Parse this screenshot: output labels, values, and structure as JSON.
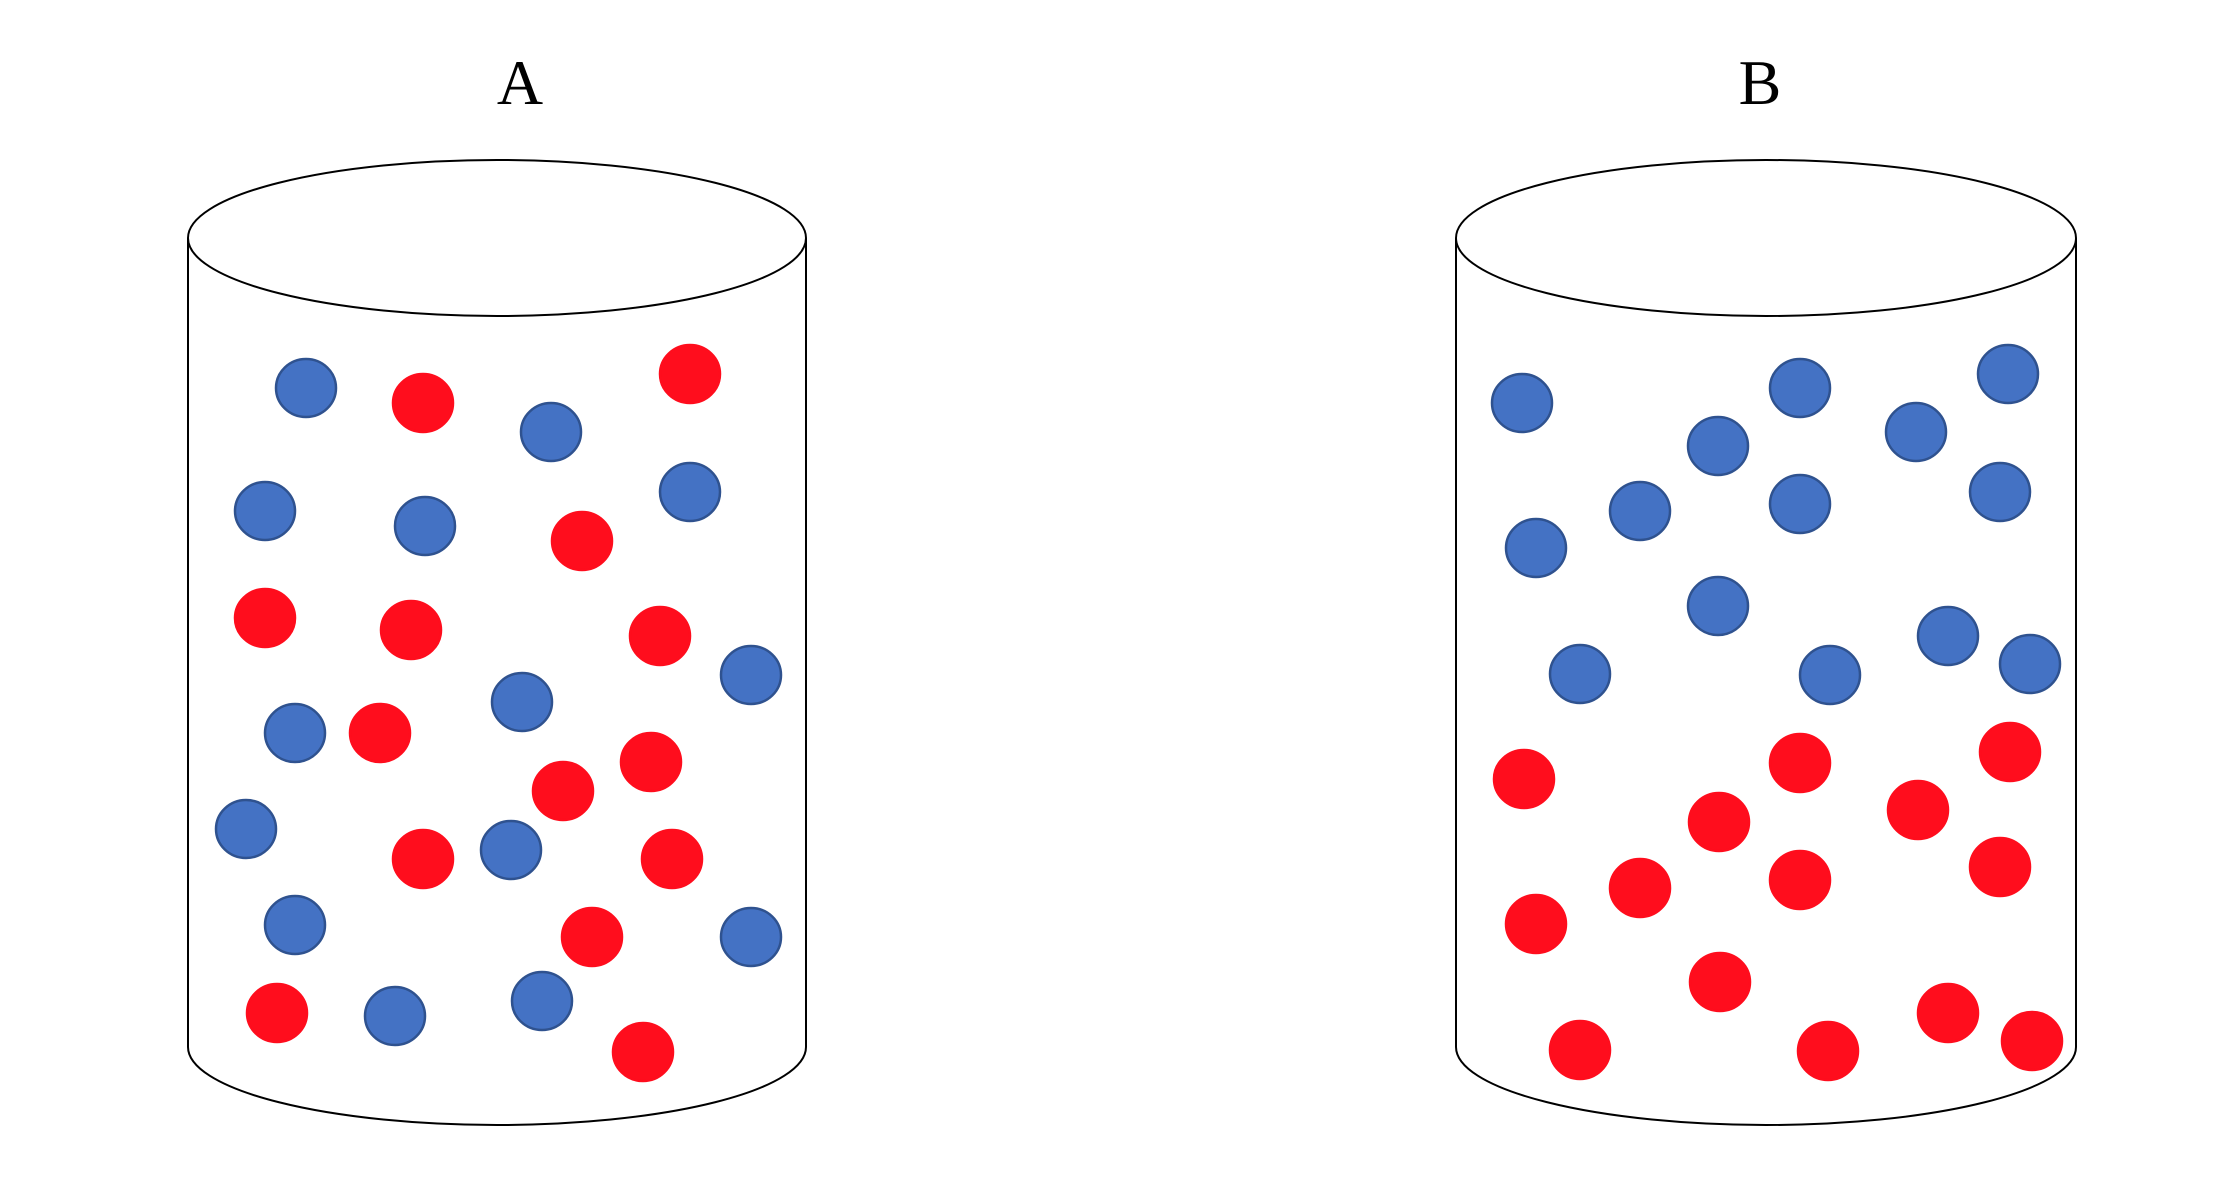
{
  "containers": [
    {
      "label": "A",
      "particles": [
        {
          "color": "blue"
        },
        {
          "color": "red"
        },
        {
          "color": "blue"
        },
        {
          "color": "red"
        },
        {
          "color": "blue"
        },
        {
          "color": "blue"
        },
        {
          "color": "red"
        },
        {
          "color": "blue"
        },
        {
          "color": "red"
        },
        {
          "color": "red"
        },
        {
          "color": "red"
        },
        {
          "color": "blue"
        },
        {
          "color": "blue"
        },
        {
          "color": "red"
        },
        {
          "color": "blue"
        },
        {
          "color": "red"
        },
        {
          "color": "blue"
        },
        {
          "color": "red"
        },
        {
          "color": "red"
        },
        {
          "color": "blue"
        },
        {
          "color": "red"
        },
        {
          "color": "blue"
        },
        {
          "color": "red"
        },
        {
          "color": "blue"
        },
        {
          "color": "red"
        },
        {
          "color": "blue"
        },
        {
          "color": "blue"
        },
        {
          "color": "red"
        }
      ]
    },
    {
      "label": "B",
      "particles": [
        {
          "color": "blue"
        },
        {
          "color": "blue"
        },
        {
          "color": "blue"
        },
        {
          "color": "blue"
        },
        {
          "color": "blue"
        },
        {
          "color": "blue"
        },
        {
          "color": "blue"
        },
        {
          "color": "blue"
        },
        {
          "color": "blue"
        },
        {
          "color": "blue"
        },
        {
          "color": "blue"
        },
        {
          "color": "blue"
        },
        {
          "color": "blue"
        },
        {
          "color": "blue"
        },
        {
          "color": "red"
        },
        {
          "color": "red"
        },
        {
          "color": "red"
        },
        {
          "color": "red"
        },
        {
          "color": "red"
        },
        {
          "color": "red"
        },
        {
          "color": "red"
        },
        {
          "color": "red"
        },
        {
          "color": "red"
        },
        {
          "color": "red"
        },
        {
          "color": "red"
        },
        {
          "color": "red"
        },
        {
          "color": "red"
        },
        {
          "color": "red"
        }
      ]
    }
  ],
  "colors": {
    "blue_fill": "#4472C4",
    "blue_stroke": "#2F528F",
    "red_fill": "#FF0D1D",
    "red_stroke": "#FF0D1D",
    "outline": "#000000",
    "background": "#FFFFFF"
  }
}
